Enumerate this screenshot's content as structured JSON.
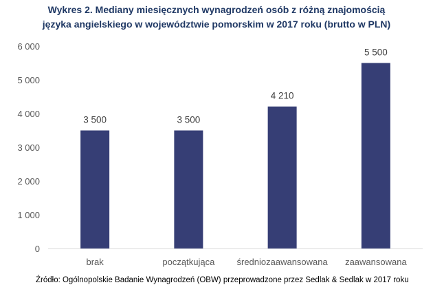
{
  "title_lines": [
    "Wykres 2. Mediany miesięcznych wynagrodzeń osób z różną znajomością",
    "języka angielskiego w województwie pomorskim w 2017 roku (brutto w PLN)"
  ],
  "source": "Źródło: Ogólnopolskie Badanie Wynagrodzeń (OBW) przeprowadzone przez Sedlak & Sedlak w 2017 roku",
  "colors": {
    "bar": "#363e75",
    "title": "#1f3864",
    "axis": "#d9d9d9",
    "text": "#595959"
  },
  "chart_data": {
    "type": "bar",
    "title": "Wykres 2. Mediany miesięcznych wynagrodzeń osób z różną znajomością języka angielskiego w województwie pomorskim w 2017 roku (brutto w PLN)",
    "categories": [
      "brak",
      "początkująca",
      "średniozaawansowana",
      "zaawansowana"
    ],
    "values": [
      3500,
      3500,
      4210,
      5500
    ],
    "value_labels": [
      "3 500",
      "3 500",
      "4 210",
      "5 500"
    ],
    "ylim": [
      0,
      6000
    ],
    "yticks": [
      0,
      1000,
      2000,
      3000,
      4000,
      5000,
      6000
    ],
    "ytick_labels": [
      "0",
      "1 000",
      "2 000",
      "3 000",
      "4 000",
      "5 000",
      "6 000"
    ],
    "xlabel": "",
    "ylabel": "",
    "grid": false,
    "legend": "none"
  }
}
